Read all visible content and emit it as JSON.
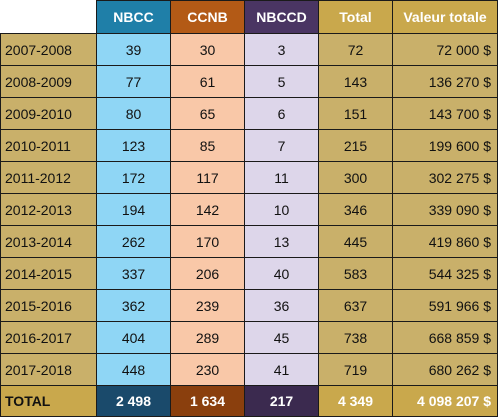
{
  "colors": {
    "nbcc_header": "#1f7fa8",
    "ccnb_header": "#b35a16",
    "nbccd_header": "#4a3563",
    "gold": "#c9a84c",
    "nbcc_cell": "#8fd6f5",
    "ccnb_cell": "#f9c8a8",
    "nbccd_cell": "#ddd6ea"
  },
  "headers": {
    "nbcc": "NBCC",
    "ccnb": "CCNB",
    "nbccd": "NBCCD",
    "total": "Total",
    "value": "Valeur totale"
  },
  "rows": [
    {
      "year": "2007-2008",
      "nbcc": "39",
      "ccnb": "30",
      "nbccd": "3",
      "total": "72",
      "value": "72 000 $"
    },
    {
      "year": "2008-2009",
      "nbcc": "77",
      "ccnb": "61",
      "nbccd": "5",
      "total": "143",
      "value": "136 270 $"
    },
    {
      "year": "2009-2010",
      "nbcc": "80",
      "ccnb": "65",
      "nbccd": "6",
      "total": "151",
      "value": "143 700 $"
    },
    {
      "year": "2010-2011",
      "nbcc": "123",
      "ccnb": "85",
      "nbccd": "7",
      "total": "215",
      "value": "199 600 $"
    },
    {
      "year": "2011-2012",
      "nbcc": "172",
      "ccnb": "117",
      "nbccd": "11",
      "total": "300",
      "value": "302 275 $"
    },
    {
      "year": "2012-2013",
      "nbcc": "194",
      "ccnb": "142",
      "nbccd": "10",
      "total": "346",
      "value": "339 090 $"
    },
    {
      "year": "2013-2014",
      "nbcc": "262",
      "ccnb": "170",
      "nbccd": "13",
      "total": "445",
      "value": "419 860 $"
    },
    {
      "year": "2014-2015",
      "nbcc": "337",
      "ccnb": "206",
      "nbccd": "40",
      "total": "583",
      "value": "544 325 $"
    },
    {
      "year": "2015-2016",
      "nbcc": "362",
      "ccnb": "239",
      "nbccd": "36",
      "total": "637",
      "value": "591 966 $"
    },
    {
      "year": "2016-2017",
      "nbcc": "404",
      "ccnb": "289",
      "nbccd": "45",
      "total": "738",
      "value": "668 859 $"
    },
    {
      "year": "2017-2018",
      "nbcc": "448",
      "ccnb": "230",
      "nbccd": "41",
      "total": "719",
      "value": "680 262 $"
    }
  ],
  "footer": {
    "label": "TOTAL",
    "nbcc": "2 498",
    "ccnb": "1 634",
    "nbccd": "217",
    "total": "4 349",
    "value": "4 098 207 $"
  }
}
